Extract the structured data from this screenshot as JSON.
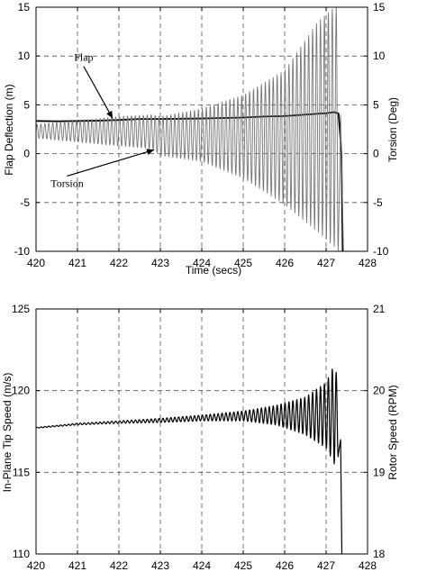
{
  "chart_data": [
    {
      "type": "line",
      "xlabel": "Time (secs)",
      "ylabel": "Flap Deflection (m)",
      "y2label": "Torsion (Deg)",
      "xlim": [
        420,
        428
      ],
      "ylim": [
        -10,
        15
      ],
      "y2lim": [
        -10,
        15
      ],
      "xticks": [
        420,
        421,
        422,
        423,
        424,
        425,
        426,
        427,
        428
      ],
      "yticks": [
        -10,
        -5,
        0,
        5,
        10,
        15
      ],
      "y2ticks": [
        -10,
        -5,
        0,
        5,
        10,
        15
      ],
      "grid": true,
      "grid_style": "dashed",
      "annotations": [
        {
          "text": "Flap",
          "x": 421.15,
          "y": 9.5,
          "target_x": 421.85,
          "target_y": 3.6
        },
        {
          "text": "Torsion",
          "x": 420.75,
          "y": -3.4,
          "target_x": 422.85,
          "target_y": 0.4
        }
      ],
      "series": [
        {
          "id": "flap",
          "axis": "left",
          "color": "#000000",
          "width": 1.8,
          "points": [
            [
              420.0,
              3.35
            ],
            [
              420.5,
              3.32
            ],
            [
              421.0,
              3.35
            ],
            [
              421.5,
              3.38
            ],
            [
              422.0,
              3.45
            ],
            [
              422.5,
              3.55
            ],
            [
              423.0,
              3.55
            ],
            [
              423.5,
              3.58
            ],
            [
              424.0,
              3.6
            ],
            [
              424.5,
              3.65
            ],
            [
              425.0,
              3.7
            ],
            [
              425.5,
              3.8
            ],
            [
              426.0,
              3.85
            ],
            [
              426.5,
              4.0
            ],
            [
              427.0,
              4.15
            ],
            [
              427.2,
              4.25
            ],
            [
              427.3,
              4.1
            ],
            [
              427.37,
              0.0
            ],
            [
              427.4,
              -10.0
            ]
          ]
        },
        {
          "id": "torsion",
          "axis": "right",
          "color": "#777777",
          "width": 0.9,
          "period": 0.095,
          "envelope": [
            [
              420.0,
              1.6,
              3.0
            ],
            [
              421.0,
              1.2,
              3.4
            ],
            [
              422.0,
              0.8,
              3.8
            ],
            [
              422.8,
              0.5,
              4.0
            ],
            [
              423.0,
              -0.2,
              3.8
            ],
            [
              424.0,
              -0.8,
              4.6
            ],
            [
              425.0,
              -2.5,
              6.0
            ],
            [
              426.0,
              -5.2,
              8.5
            ],
            [
              426.8,
              -8.0,
              13.5
            ],
            [
              427.2,
              -9.5,
              15.0
            ],
            [
              427.3,
              -10.0,
              15.0
            ]
          ],
          "drop": [
            [
              427.35,
              4.0
            ],
            [
              427.42,
              -10.0
            ]
          ]
        }
      ]
    },
    {
      "type": "line",
      "xlabel": "",
      "ylabel": "In-Plane Tip Speed (m/s)",
      "y2label": "Rotor Speed (RPM)",
      "xlim": [
        420,
        428
      ],
      "ylim": [
        110,
        125
      ],
      "y2lim": [
        18,
        21
      ],
      "xticks": [
        420,
        421,
        422,
        423,
        424,
        425,
        426,
        427,
        428
      ],
      "yticks": [
        110,
        115,
        120,
        125
      ],
      "y2ticks": [
        18,
        19,
        20,
        21
      ],
      "grid": true,
      "grid_style": "dashed",
      "series": [
        {
          "id": "tip_speed",
          "axis": "left",
          "color": "#000000",
          "width": 1.2,
          "period": 0.095,
          "envelope": [
            [
              420.0,
              117.7,
              117.75
            ],
            [
              421.0,
              117.9,
              118.0
            ],
            [
              422.0,
              118.0,
              118.15
            ],
            [
              423.0,
              118.05,
              118.3
            ],
            [
              424.0,
              118.15,
              118.5
            ],
            [
              425.0,
              118.15,
              118.75
            ],
            [
              425.8,
              117.9,
              119.1
            ],
            [
              426.5,
              117.3,
              119.6
            ],
            [
              427.0,
              116.5,
              120.5
            ],
            [
              427.2,
              115.5,
              121.6
            ],
            [
              427.3,
              116.0,
              120.5
            ]
          ],
          "drop": [
            [
              427.35,
              117.0
            ],
            [
              427.38,
              110.0
            ]
          ]
        }
      ]
    }
  ]
}
